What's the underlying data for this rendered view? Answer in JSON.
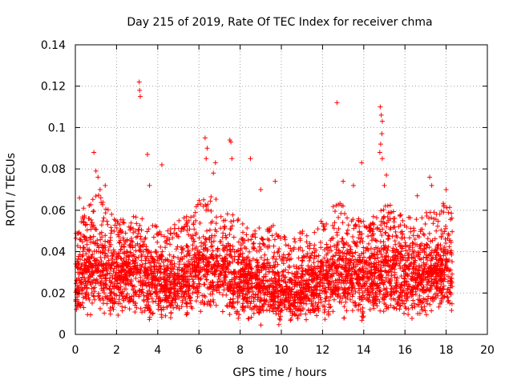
{
  "chart_data": {
    "type": "scatter",
    "title": "Day 215 of 2019, Rate Of TEC Index for receiver chma",
    "xlabel": "GPS time / hours",
    "ylabel": "ROTI / TECUs",
    "xlim": [
      0,
      20
    ],
    "ylim": [
      0,
      0.14
    ],
    "xticks": [
      0,
      2,
      4,
      6,
      8,
      10,
      12,
      14,
      16,
      18,
      20
    ],
    "yticks": [
      0,
      0.02,
      0.04,
      0.06,
      0.08,
      0.1,
      0.12,
      0.14
    ],
    "xtick_labels": [
      "0",
      "2",
      "4",
      "6",
      "8",
      "10",
      "12",
      "14",
      "16",
      "18",
      "20"
    ],
    "ytick_labels": [
      "0",
      "0.02",
      "0.04",
      "0.06",
      "0.08",
      "0.1",
      "0.12",
      "0.14"
    ],
    "grid": true,
    "marker": "+",
    "color": "#ff0000",
    "data_extent_hours": [
      0,
      18.3
    ],
    "envelope": {
      "hours": [
        0.0,
        0.5,
        1.0,
        1.5,
        2.0,
        2.5,
        3.0,
        3.5,
        4.0,
        4.5,
        5.0,
        5.5,
        6.0,
        6.5,
        7.0,
        7.5,
        8.0,
        8.5,
        9.0,
        9.5,
        10.0,
        10.5,
        11.0,
        11.5,
        12.0,
        12.5,
        13.0,
        13.5,
        14.0,
        14.5,
        15.0,
        15.5,
        16.0,
        16.5,
        17.0,
        17.5,
        18.0,
        18.3
      ],
      "median": [
        0.025,
        0.03,
        0.032,
        0.028,
        0.026,
        0.027,
        0.028,
        0.026,
        0.024,
        0.023,
        0.025,
        0.027,
        0.03,
        0.032,
        0.03,
        0.028,
        0.026,
        0.024,
        0.022,
        0.022,
        0.02,
        0.02,
        0.021,
        0.022,
        0.025,
        0.028,
        0.029,
        0.027,
        0.025,
        0.027,
        0.03,
        0.029,
        0.027,
        0.026,
        0.027,
        0.028,
        0.03,
        0.028
      ],
      "upper": [
        0.05,
        0.06,
        0.07,
        0.062,
        0.055,
        0.056,
        0.058,
        0.054,
        0.052,
        0.05,
        0.055,
        0.058,
        0.065,
        0.068,
        0.064,
        0.06,
        0.056,
        0.05,
        0.052,
        0.055,
        0.048,
        0.046,
        0.05,
        0.052,
        0.058,
        0.062,
        0.064,
        0.06,
        0.056,
        0.06,
        0.064,
        0.062,
        0.058,
        0.056,
        0.06,
        0.062,
        0.064,
        0.06
      ],
      "lower": [
        0.01,
        0.012,
        0.012,
        0.011,
        0.01,
        0.01,
        0.011,
        0.01,
        0.009,
        0.009,
        0.01,
        0.01,
        0.012,
        0.012,
        0.011,
        0.01,
        0.009,
        0.008,
        0.007,
        0.007,
        0.007,
        0.007,
        0.008,
        0.008,
        0.009,
        0.01,
        0.011,
        0.01,
        0.01,
        0.01,
        0.011,
        0.011,
        0.01,
        0.01,
        0.01,
        0.011,
        0.012,
        0.011
      ]
    },
    "outliers": [
      {
        "x": 0.2,
        "y": 0.066
      },
      {
        "x": 0.4,
        "y": 0.061
      },
      {
        "x": 0.9,
        "y": 0.088
      },
      {
        "x": 1.0,
        "y": 0.079
      },
      {
        "x": 1.1,
        "y": 0.076
      },
      {
        "x": 1.2,
        "y": 0.07
      },
      {
        "x": 1.45,
        "y": 0.072
      },
      {
        "x": 3.1,
        "y": 0.122
      },
      {
        "x": 3.12,
        "y": 0.118
      },
      {
        "x": 3.15,
        "y": 0.115
      },
      {
        "x": 3.5,
        "y": 0.087
      },
      {
        "x": 3.6,
        "y": 0.072
      },
      {
        "x": 4.2,
        "y": 0.082
      },
      {
        "x": 6.3,
        "y": 0.095
      },
      {
        "x": 6.4,
        "y": 0.09
      },
      {
        "x": 6.35,
        "y": 0.085
      },
      {
        "x": 6.8,
        "y": 0.083
      },
      {
        "x": 6.7,
        "y": 0.078
      },
      {
        "x": 7.5,
        "y": 0.094
      },
      {
        "x": 7.55,
        "y": 0.093
      },
      {
        "x": 7.6,
        "y": 0.085
      },
      {
        "x": 8.5,
        "y": 0.085
      },
      {
        "x": 9.0,
        "y": 0.07
      },
      {
        "x": 9.7,
        "y": 0.074
      },
      {
        "x": 12.7,
        "y": 0.112
      },
      {
        "x": 13.0,
        "y": 0.074
      },
      {
        "x": 13.5,
        "y": 0.072
      },
      {
        "x": 13.9,
        "y": 0.083
      },
      {
        "x": 14.8,
        "y": 0.11
      },
      {
        "x": 14.85,
        "y": 0.106
      },
      {
        "x": 14.9,
        "y": 0.103
      },
      {
        "x": 14.88,
        "y": 0.097
      },
      {
        "x": 14.82,
        "y": 0.092
      },
      {
        "x": 14.78,
        "y": 0.088
      },
      {
        "x": 14.9,
        "y": 0.085
      },
      {
        "x": 15.1,
        "y": 0.077
      },
      {
        "x": 15.0,
        "y": 0.072
      },
      {
        "x": 16.6,
        "y": 0.067
      },
      {
        "x": 17.2,
        "y": 0.076
      },
      {
        "x": 17.3,
        "y": 0.072
      },
      {
        "x": 18.0,
        "y": 0.07
      }
    ]
  }
}
